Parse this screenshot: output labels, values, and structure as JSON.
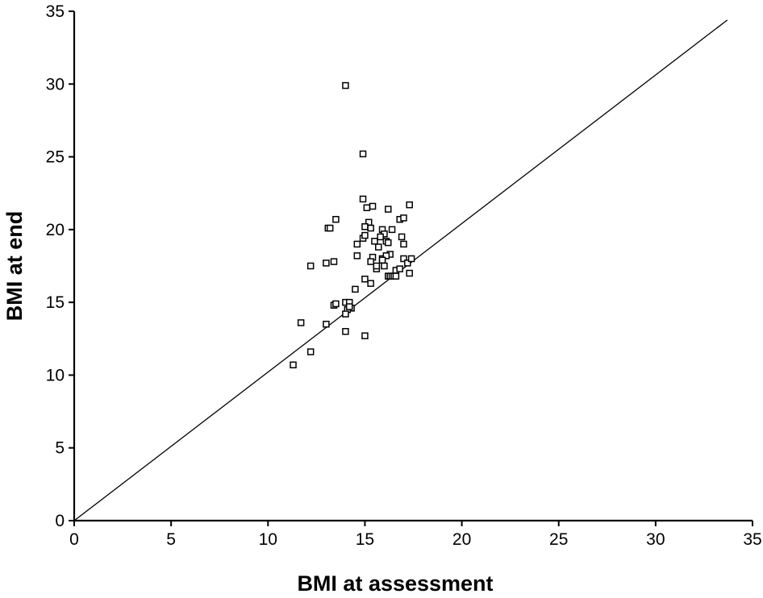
{
  "chart_data": {
    "type": "scatter",
    "title": "",
    "xlabel": "BMI at assessment",
    "ylabel": "BMI at end",
    "xlim": [
      0,
      35
    ],
    "ylim": [
      0,
      35
    ],
    "x_ticks": [
      "0",
      "5",
      "10",
      "15",
      "20",
      "25",
      "30",
      "35"
    ],
    "y_ticks": [
      "0",
      "5",
      "10",
      "15",
      "20",
      "25",
      "30",
      "35"
    ],
    "grid": false,
    "legend": "none",
    "reference_line": {
      "x": [
        0,
        33.7
      ],
      "y": [
        0,
        34.4
      ],
      "label": ""
    },
    "marker": "open-square",
    "series": [
      {
        "x": [
          14.0,
          14.9,
          14.9,
          15.4,
          15.1,
          15.2,
          15.0,
          16.2,
          16.8,
          17.0,
          17.3,
          13.1,
          13.2,
          13.5,
          15.9,
          15.3,
          16.0,
          16.4,
          14.6,
          14.9,
          15.0,
          15.5,
          15.8,
          16.1,
          16.2,
          16.9,
          17.0,
          15.7,
          16.3,
          14.6,
          15.4,
          15.9,
          16.1,
          13.0,
          13.4,
          15.3,
          15.6,
          15.9,
          17.0,
          17.2,
          17.4,
          15.6,
          16.0,
          16.6,
          16.2,
          16.3,
          16.4,
          16.5,
          16.6,
          16.8,
          17.3,
          12.2,
          15.0,
          15.3,
          14.5,
          13.4,
          13.5,
          14.0,
          14.2,
          14.3,
          14.1,
          14.0,
          14.2,
          11.7,
          13.0,
          14.0,
          15.0,
          12.2,
          11.3
        ],
        "y": [
          29.9,
          25.2,
          22.1,
          21.6,
          21.5,
          20.5,
          20.2,
          21.4,
          20.7,
          20.8,
          21.7,
          20.1,
          20.1,
          20.7,
          20.0,
          20.1,
          19.7,
          20.0,
          19.0,
          19.4,
          19.6,
          19.2,
          19.5,
          19.2,
          19.1,
          19.5,
          19.0,
          18.8,
          18.3,
          18.2,
          18.1,
          18.0,
          18.2,
          17.7,
          17.8,
          17.8,
          17.3,
          17.9,
          18.0,
          17.7,
          18.0,
          17.5,
          17.5,
          17.2,
          16.8,
          16.8,
          16.8,
          16.8,
          16.8,
          17.3,
          17.0,
          17.5,
          16.6,
          16.3,
          15.9,
          14.8,
          14.9,
          15.0,
          15.0,
          14.6,
          14.5,
          14.2,
          14.7,
          13.6,
          13.5,
          13.0,
          12.7,
          11.6,
          10.7
        ]
      }
    ]
  }
}
